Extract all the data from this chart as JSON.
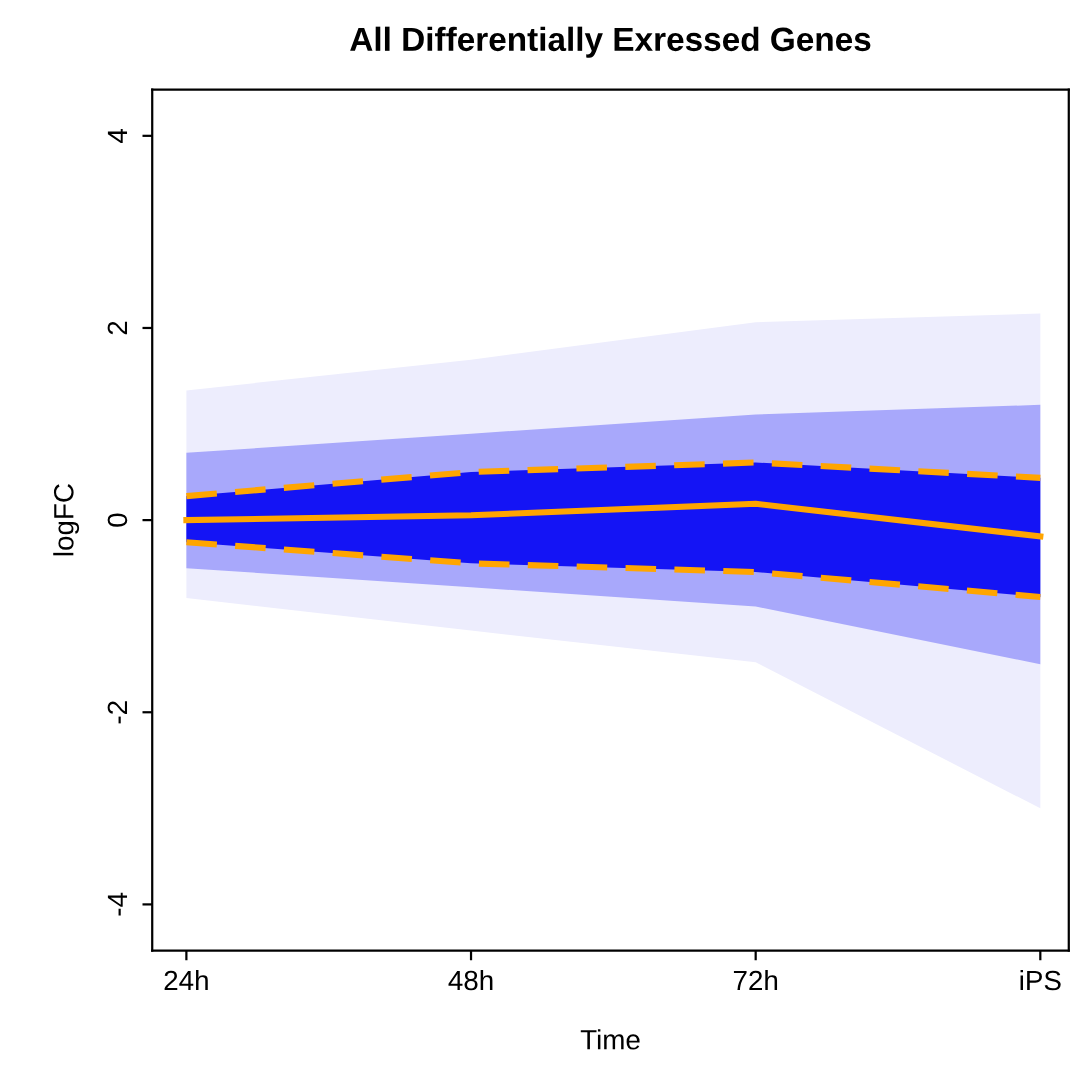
{
  "chart_data": {
    "type": "line",
    "title": "All Differentially Exressed Genes",
    "xlabel": "Time",
    "ylabel": "logFC",
    "categories": [
      "24h",
      "48h",
      "72h",
      "iPS"
    ],
    "ylim": [
      -4.48,
      4.48
    ],
    "yticks": [
      -4,
      -2,
      0,
      2,
      4
    ],
    "grid": false,
    "legend": false,
    "series": [
      {
        "color": "#ededfd",
        "values": [
          null,
          null,
          null,
          null
        ],
        "lower": [
          -0.81,
          -1.15,
          -1.48,
          -3.0
        ],
        "upper": [
          1.35,
          1.67,
          2.06,
          2.15
        ]
      },
      {
        "color": "#a8a8fb",
        "values": [
          null,
          null,
          null,
          null
        ],
        "lower": [
          -0.5,
          -0.7,
          -0.9,
          -1.5
        ],
        "upper": [
          0.7,
          0.9,
          1.1,
          1.2
        ]
      },
      {
        "color": "#1414f5",
        "values": [
          null,
          null,
          null,
          null
        ],
        "lower": [
          -0.23,
          -0.45,
          -0.54,
          -0.8
        ],
        "upper": [
          0.25,
          0.5,
          0.6,
          0.44
        ]
      },
      {
        "type": "line",
        "color": "#ffa500",
        "line_style": "dashed",
        "values": [
          0.25,
          0.5,
          0.6,
          0.44
        ]
      },
      {
        "type": "line",
        "color": "#ffa500",
        "line_style": "dashed",
        "values": [
          -0.23,
          -0.45,
          -0.54,
          -0.8
        ]
      },
      {
        "type": "line",
        "color": "#ffa500",
        "line_style": "solid",
        "values": [
          0.0,
          0.05,
          0.17,
          -0.17
        ]
      }
    ]
  }
}
